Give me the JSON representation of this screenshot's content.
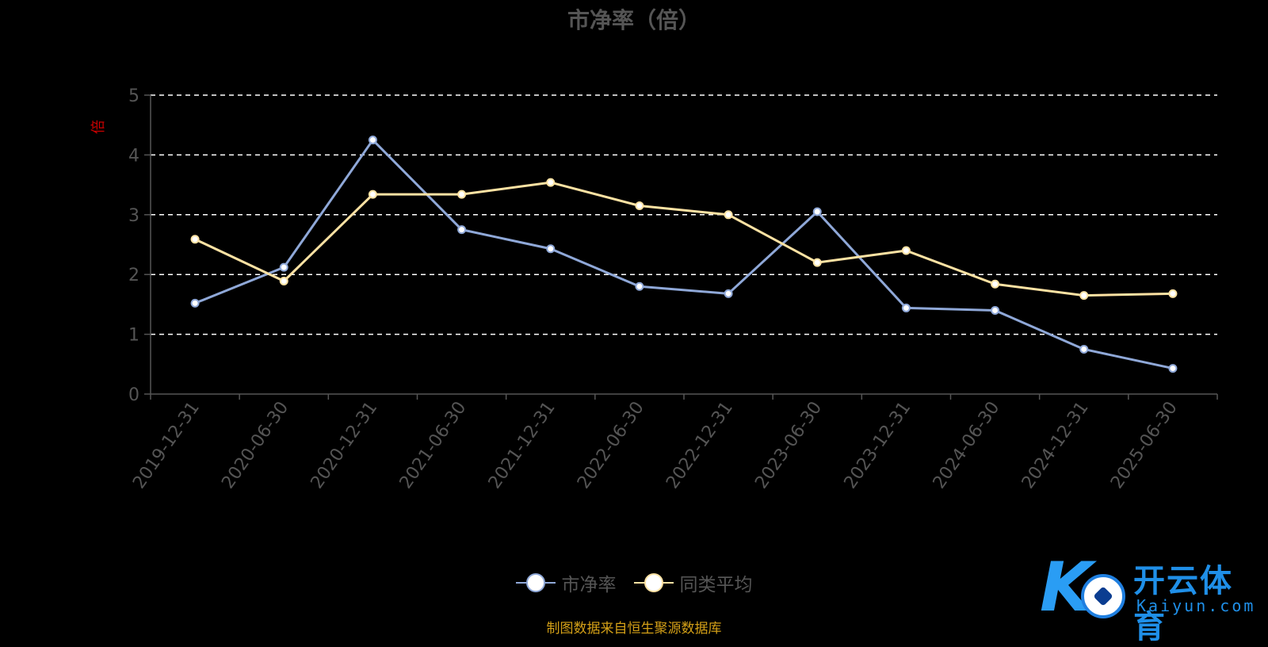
{
  "chart_data": {
    "type": "line",
    "title": "市净率（倍）",
    "ylabel": "倍",
    "ylim": [
      0,
      5
    ],
    "yticks": [
      0,
      1,
      2,
      3,
      4,
      5
    ],
    "grid": true,
    "legend_position": "bottom-center",
    "categories": [
      "2019-12-31",
      "2020-06-30",
      "2020-12-31",
      "2021-06-30",
      "2021-12-31",
      "2022-06-30",
      "2022-12-31",
      "2023-06-30",
      "2023-12-31",
      "2024-06-30",
      "2024-12-31",
      "2025-06-30"
    ],
    "series": [
      {
        "name": "市净率",
        "color": "#8fa8d8",
        "values": [
          1.52,
          2.12,
          4.25,
          2.75,
          2.43,
          1.8,
          1.68,
          3.05,
          1.44,
          1.4,
          0.75,
          0.43
        ]
      },
      {
        "name": "同类平均",
        "color": "#fde2a3",
        "values": [
          2.59,
          1.89,
          3.34,
          3.34,
          3.54,
          3.15,
          3.0,
          2.2,
          2.4,
          1.84,
          1.65,
          1.68
        ]
      }
    ]
  },
  "footer": {
    "source_note": "制图数据来自恒生聚源数据库"
  },
  "brand": {
    "name": "开云体育",
    "url": "Kaiyun.com",
    "logo_letter": "K"
  },
  "colors": {
    "axis_label": "#555555",
    "unit_label": "#cc0000",
    "grid": "#ffffff"
  }
}
